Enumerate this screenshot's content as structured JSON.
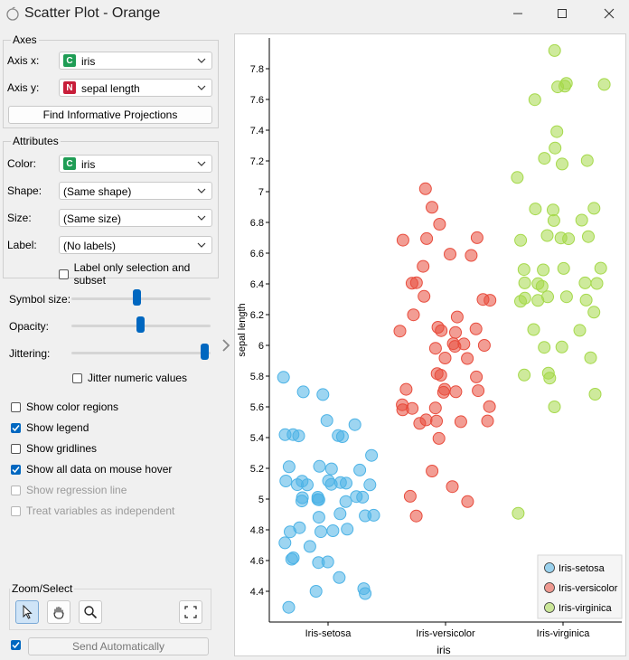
{
  "window": {
    "title": "Scatter Plot - Orange"
  },
  "axes": {
    "group_title": "Axes",
    "axis_x_label": "Axis x:",
    "axis_x_value": "iris",
    "axis_x_badge": "C",
    "axis_y_label": "Axis y:",
    "axis_y_value": "sepal length",
    "axis_y_badge": "N",
    "find_button": "Find Informative Projections"
  },
  "attributes": {
    "group_title": "Attributes",
    "color_label": "Color:",
    "color_value": "iris",
    "color_badge": "C",
    "shape_label": "Shape:",
    "shape_value": "(Same shape)",
    "size_label": "Size:",
    "size_value": "(Same size)",
    "label_label": "Label:",
    "label_value": "(No labels)",
    "label_only_selection": "Label only selection and subset"
  },
  "sliders": {
    "symbol_size_label": "Symbol size:",
    "opacity_label": "Opacity:",
    "jittering_label": "Jittering:",
    "jitter_numeric": "Jitter numeric values",
    "symbol_size_fraction": 0.47,
    "opacity_fraction": 0.5,
    "jittering_fraction": 1.0
  },
  "options": {
    "show_color_regions": "Show color regions",
    "show_legend": "Show legend",
    "show_gridlines": "Show gridlines",
    "show_all_data": "Show all data on mouse hover",
    "show_regression": "Show regression line",
    "treat_independent": "Treat variables as independent"
  },
  "zoom": {
    "group_title": "Zoom/Select"
  },
  "send": {
    "label": "Send Automatically"
  },
  "colors": {
    "setosa": "#4db3e6",
    "versicolor": "#e84c3d",
    "virginica": "#a5d94a",
    "badge_c": "#1f9d55",
    "badge_n": "#c81e3a",
    "accent": "#0067c0"
  },
  "chart_data": {
    "type": "scatter",
    "xlabel": "iris",
    "ylabel": "sepal length",
    "categories": [
      "Iris-setosa",
      "Iris-versicolor",
      "Iris-virginica"
    ],
    "y_ticks": [
      4.4,
      4.6,
      4.8,
      5,
      5.2,
      5.4,
      5.6,
      5.8,
      6,
      6.2,
      6.4,
      6.6,
      6.8,
      7,
      7.2,
      7.4,
      7.6,
      7.8
    ],
    "ylim": [
      4.2,
      8.0
    ],
    "legend_position": "bottom-right",
    "jittered": true,
    "series": [
      {
        "name": "Iris-setosa",
        "category": 0,
        "y": [
          4.4,
          4.3,
          4.4,
          4.4,
          4.5,
          4.6,
          4.6,
          4.6,
          4.6,
          4.7,
          4.7,
          4.8,
          4.8,
          4.8,
          4.8,
          4.8,
          4.9,
          4.9,
          4.9,
          4.9,
          5.0,
          5.0,
          5.0,
          5.0,
          5.0,
          5.0,
          5.0,
          5.0,
          5.1,
          5.1,
          5.1,
          5.1,
          5.1,
          5.1,
          5.1,
          5.1,
          5.1,
          5.2,
          5.2,
          5.2,
          5.2,
          5.3,
          5.4,
          5.4,
          5.4,
          5.4,
          5.4,
          5.5,
          5.5,
          5.7,
          5.7,
          5.8
        ]
      },
      {
        "name": "Iris-versicolor",
        "category": 1,
        "y": [
          4.9,
          5.0,
          5.0,
          5.1,
          5.2,
          5.4,
          5.5,
          5.5,
          5.5,
          5.5,
          5.5,
          5.6,
          5.6,
          5.6,
          5.6,
          5.6,
          5.7,
          5.7,
          5.7,
          5.7,
          5.7,
          5.8,
          5.8,
          5.8,
          5.9,
          5.9,
          6.0,
          6.0,
          6.0,
          6.0,
          6.0,
          6.1,
          6.1,
          6.1,
          6.1,
          6.1,
          6.2,
          6.2,
          6.3,
          6.3,
          6.3,
          6.4,
          6.4,
          6.5,
          6.6,
          6.6,
          6.7,
          6.7,
          6.7,
          6.8,
          6.9,
          7.0
        ]
      },
      {
        "name": "Iris-virginica",
        "category": 2,
        "y": [
          4.9,
          5.6,
          5.7,
          5.8,
          5.8,
          5.8,
          5.9,
          6.0,
          6.0,
          6.1,
          6.1,
          6.2,
          6.3,
          6.3,
          6.3,
          6.3,
          6.3,
          6.3,
          6.4,
          6.4,
          6.4,
          6.4,
          6.4,
          6.5,
          6.5,
          6.5,
          6.5,
          6.7,
          6.7,
          6.7,
          6.7,
          6.7,
          6.8,
          6.8,
          6.9,
          6.9,
          6.9,
          7.1,
          7.2,
          7.2,
          7.2,
          7.3,
          7.4,
          7.6,
          7.7,
          7.7,
          7.7,
          7.7,
          7.9
        ]
      }
    ]
  }
}
